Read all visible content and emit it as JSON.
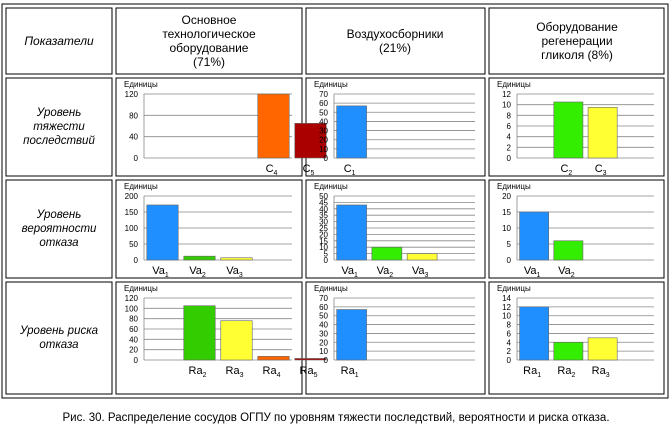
{
  "table": {
    "corner": "Показатели",
    "columns": [
      {
        "title_lines": [
          "Основное",
          "технологическое",
          "оборудование",
          "(71%)"
        ]
      },
      {
        "title_lines": [
          "Воздухосборники",
          "(21%)"
        ]
      },
      {
        "title_lines": [
          "Оборудование",
          "регенерации",
          "гликоля (8%)"
        ]
      }
    ],
    "rows": [
      {
        "label_lines": [
          "Уровень",
          "тяжести",
          "последствий"
        ]
      },
      {
        "label_lines": [
          "Уровень",
          "вероятности",
          "отказа"
        ]
      },
      {
        "label_lines": [
          "Уровень риска",
          "отказа"
        ]
      }
    ]
  },
  "caption": "Рис. 30. Распределение сосудов ОГПУ по уровням тяжести последствий, вероятности и риска отказа.",
  "chart_data": [
    {
      "type": "bar",
      "row": 0,
      "col": 0,
      "ylabel": "Единицы",
      "ylim": [
        0,
        120
      ],
      "yticks": [
        0,
        40,
        80,
        120
      ],
      "categories": [
        {
          "base": "C",
          "sub": "4"
        },
        {
          "base": "C",
          "sub": "5"
        }
      ],
      "slot_start": 3,
      "values": [
        120,
        65
      ],
      "colors": [
        "#ff6600",
        "#aa0000"
      ]
    },
    {
      "type": "bar",
      "row": 0,
      "col": 1,
      "ylabel": "Единицы",
      "ylim": [
        0,
        70
      ],
      "yticks": [
        0,
        10,
        20,
        30,
        40,
        50,
        60,
        70
      ],
      "categories": [
        {
          "base": "C",
          "sub": "1"
        }
      ],
      "slot_start": 0,
      "values": [
        57
      ],
      "colors": [
        "#1f8fff"
      ]
    },
    {
      "type": "bar",
      "row": 0,
      "col": 2,
      "ylabel": "Единицы",
      "ylim": [
        0,
        12
      ],
      "yticks": [
        0,
        2,
        4,
        6,
        8,
        10,
        12
      ],
      "categories": [
        {
          "base": "C",
          "sub": "2"
        },
        {
          "base": "C",
          "sub": "3"
        }
      ],
      "slot_start": 1,
      "values": [
        10.5,
        9.5
      ],
      "colors": [
        "#33ee00",
        "#ffff33"
      ]
    },
    {
      "type": "bar",
      "row": 1,
      "col": 0,
      "ylabel": "Единицы",
      "ylim": [
        0,
        200
      ],
      "yticks": [
        0,
        50,
        100,
        150,
        200
      ],
      "categories": [
        {
          "base": "Va",
          "sub": "1"
        },
        {
          "base": "Va",
          "sub": "2"
        },
        {
          "base": "Va",
          "sub": "3"
        }
      ],
      "slot_start": 0,
      "values": [
        172,
        12,
        7
      ],
      "colors": [
        "#1f8fff",
        "#33cc00",
        "#ffff33"
      ]
    },
    {
      "type": "bar",
      "row": 1,
      "col": 1,
      "ylabel": "Единицы",
      "ylim": [
        0,
        50
      ],
      "yticks": [
        0,
        5,
        10,
        15,
        20,
        25,
        30,
        35,
        40,
        45,
        50
      ],
      "categories": [
        {
          "base": "Va",
          "sub": "1"
        },
        {
          "base": "Va",
          "sub": "2"
        },
        {
          "base": "Va",
          "sub": "3"
        }
      ],
      "slot_start": 0,
      "values": [
        43,
        10,
        5
      ],
      "colors": [
        "#1f8fff",
        "#33ee00",
        "#ffff33"
      ]
    },
    {
      "type": "bar",
      "row": 1,
      "col": 2,
      "ylabel": "Единицы",
      "ylim": [
        0,
        20
      ],
      "yticks": [
        0,
        5,
        10,
        15,
        20
      ],
      "categories": [
        {
          "base": "Va",
          "sub": "1"
        },
        {
          "base": "Va",
          "sub": "2"
        }
      ],
      "slot_start": 0,
      "values": [
        15,
        6
      ],
      "colors": [
        "#1f8fff",
        "#33ee00"
      ]
    },
    {
      "type": "bar",
      "row": 2,
      "col": 0,
      "ylabel": "Единицы",
      "ylim": [
        0,
        120
      ],
      "yticks": [
        0,
        20,
        40,
        60,
        80,
        100,
        120
      ],
      "categories": [
        {
          "base": "Ra",
          "sub": "2"
        },
        {
          "base": "Ra",
          "sub": "3"
        },
        {
          "base": "Ra",
          "sub": "4"
        },
        {
          "base": "Ra",
          "sub": "5"
        }
      ],
      "slot_start": 1,
      "values": [
        105,
        76,
        7,
        3
      ],
      "colors": [
        "#33cc00",
        "#ffff33",
        "#ff6600",
        "#aa0000"
      ]
    },
    {
      "type": "bar",
      "row": 2,
      "col": 1,
      "ylabel": "Единицы",
      "ylim": [
        0,
        70
      ],
      "yticks": [
        0,
        10,
        20,
        30,
        40,
        50,
        60,
        70
      ],
      "categories": [
        {
          "base": "Ra",
          "sub": "1"
        }
      ],
      "slot_start": 0,
      "values": [
        57
      ],
      "colors": [
        "#1f8fff"
      ]
    },
    {
      "type": "bar",
      "row": 2,
      "col": 2,
      "ylabel": "Единицы",
      "ylim": [
        0,
        14
      ],
      "yticks": [
        0,
        2,
        4,
        6,
        8,
        10,
        12,
        14
      ],
      "categories": [
        {
          "base": "Ra",
          "sub": "1"
        },
        {
          "base": "Ra",
          "sub": "2"
        },
        {
          "base": "Ra",
          "sub": "3"
        }
      ],
      "slot_start": 0,
      "values": [
        12,
        4,
        5
      ],
      "colors": [
        "#1f8fff",
        "#33ee00",
        "#ffff33"
      ]
    }
  ]
}
